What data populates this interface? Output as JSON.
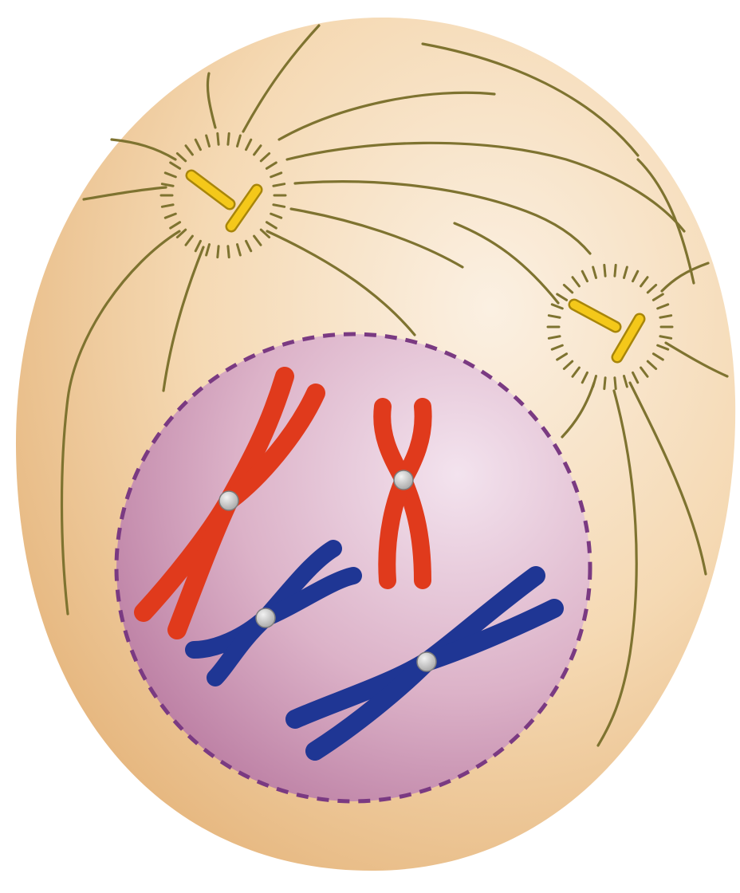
{
  "diagram": {
    "subject": "cell-in-prophase",
    "colors": {
      "background": "#ffffff",
      "cytoplasm_light": "#fbf0e2",
      "cytoplasm_mid": "#f5d9b3",
      "cytoplasm_dark": "#e6b77f",
      "spindle_fiber": "#7e7330",
      "centriole_fill": "#f4c81a",
      "centriole_stroke": "#a8860a",
      "nucleus_light": "#f3e3ee",
      "nucleus_mid": "#dcb2c8",
      "nucleus_dark": "#b97aa0",
      "nuclear_envelope": "#7a3a82",
      "chromosome_red": "#e03a1c",
      "chromosome_blue": "#1f3694",
      "centromere": "#a9a9a9",
      "centromere_highlight": "#f2f2f2"
    },
    "centrosomes": [
      {
        "name": "centrosome-upper-left"
      },
      {
        "name": "centrosome-upper-right"
      }
    ],
    "chromosomes": [
      {
        "name": "chromosome-red-long",
        "color": "chromosome_red"
      },
      {
        "name": "chromosome-red-short",
        "color": "chromosome_red"
      },
      {
        "name": "chromosome-blue-short",
        "color": "chromosome_blue"
      },
      {
        "name": "chromosome-blue-long",
        "color": "chromosome_blue"
      }
    ]
  }
}
